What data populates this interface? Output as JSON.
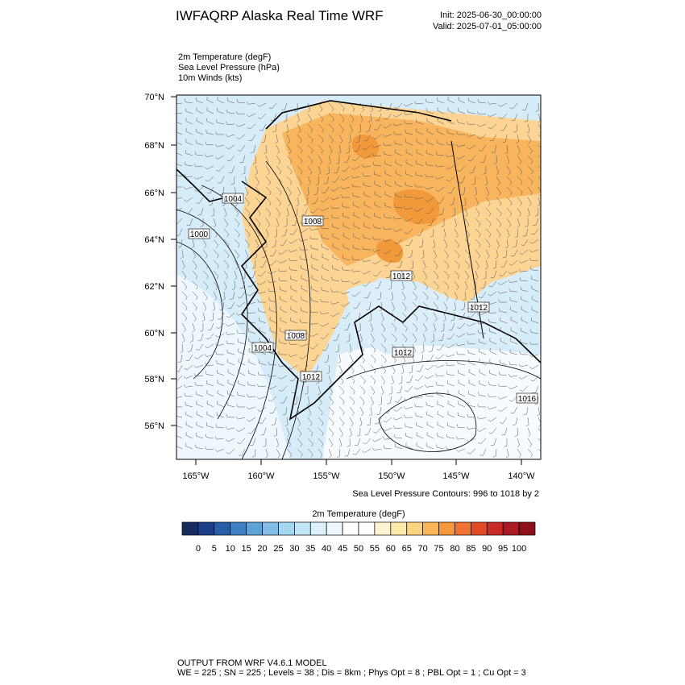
{
  "header": {
    "title": "IWFAQRP Alaska Real Time WRF",
    "init": "Init: 2025-06-30_00:00:00",
    "valid": "Valid: 2025-07-01_05:00:00"
  },
  "fields": [
    "2m Temperature   (degF)",
    "Sea Level Pressure   (hPa)",
    "10m Winds   (kts)"
  ],
  "map": {
    "lat_labels": [
      "70°N",
      "68°N",
      "66°N",
      "64°N",
      "62°N",
      "60°N",
      "58°N",
      "56°N"
    ],
    "lon_labels": [
      "165°W",
      "160°W",
      "155°W",
      "150°W",
      "145°W",
      "140°W"
    ],
    "contour_labels": [
      "1004",
      "1008",
      "1000",
      "1012",
      "1004",
      "1008",
      "1012",
      "1012",
      "1012",
      "1016"
    ],
    "contour_note": "Sea Level Pressure Contours: 996 to 1018 by 2"
  },
  "colorbar": {
    "title": "2m Temperature  (degF)",
    "levels": [
      0,
      5,
      10,
      15,
      20,
      25,
      30,
      35,
      40,
      45,
      50,
      55,
      60,
      65,
      70,
      75,
      80,
      85,
      90,
      95,
      100
    ],
    "colors": [
      "#172a5e",
      "#1d3f8a",
      "#2a5ea8",
      "#3f80c2",
      "#5ea2d8",
      "#82bde6",
      "#a6d6f2",
      "#c4e5f7",
      "#dcf0fa",
      "#eef8fd",
      "#ffffff",
      "#ffffff",
      "#fff4cf",
      "#fee8a6",
      "#fdd47d",
      "#fbb653",
      "#f6973c",
      "#ee7330",
      "#e04a28",
      "#c92a25",
      "#ad1a22",
      "#8d1119"
    ]
  },
  "footer": {
    "line1": "OUTPUT FROM WRF V4.6.1 MODEL",
    "line2": "WE = 225 ; SN = 225 ; Levels = 38 ; Dis = 8km ; Phys Opt = 8 ; PBL Opt = 1 ; Cu Opt = 3"
  }
}
